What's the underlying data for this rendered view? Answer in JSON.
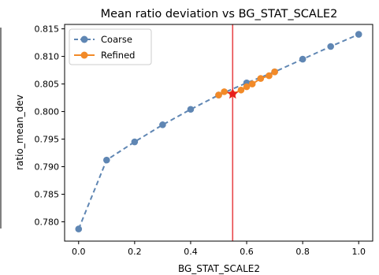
{
  "chart_data": {
    "type": "line",
    "title": "Mean ratio deviation vs BG_STAT_SCALE2",
    "xlabel": "BG_STAT_SCALE2",
    "ylabel": "ratio_mean_dev",
    "xlim": [
      -0.05,
      1.05
    ],
    "ylim": [
      0.7765,
      0.8158
    ],
    "xticks": [
      0.0,
      0.2,
      0.4,
      0.6,
      0.8,
      1.0
    ],
    "xtick_labels": [
      "0.0",
      "0.2",
      "0.4",
      "0.6",
      "0.8",
      "1.0"
    ],
    "yticks": [
      0.78,
      0.785,
      0.79,
      0.795,
      0.8,
      0.805,
      0.81,
      0.815
    ],
    "ytick_labels": [
      "0.780",
      "0.785",
      "0.790",
      "0.795",
      "0.800",
      "0.805",
      "0.810",
      "0.815"
    ],
    "grid": false,
    "legend_position": "top-left",
    "series": [
      {
        "name": "Coarse",
        "color": "#5f86b3",
        "style": "dashed",
        "marker": "circle",
        "x": [
          0.0,
          0.1,
          0.2,
          0.3,
          0.4,
          0.5,
          0.6,
          0.7,
          0.8,
          0.9,
          1.0
        ],
        "y": [
          0.7787,
          0.7912,
          0.7945,
          0.7976,
          0.8004,
          0.803,
          0.8052,
          0.8072,
          0.8095,
          0.8118,
          0.814
        ]
      },
      {
        "name": "Refined",
        "color": "#f28a28",
        "style": "solid",
        "marker": "circle",
        "x": [
          0.5,
          0.52,
          0.55,
          0.58,
          0.6,
          0.62,
          0.65,
          0.68,
          0.7
        ],
        "y": [
          0.803,
          0.8036,
          0.8032,
          0.8039,
          0.8045,
          0.805,
          0.806,
          0.8065,
          0.8072
        ]
      }
    ],
    "vertical_line": {
      "x": 0.55,
      "color": "#e8474a"
    },
    "best_point": {
      "x": 0.55,
      "y": 0.8032,
      "marker": "star",
      "color": "#e81e1e"
    }
  }
}
